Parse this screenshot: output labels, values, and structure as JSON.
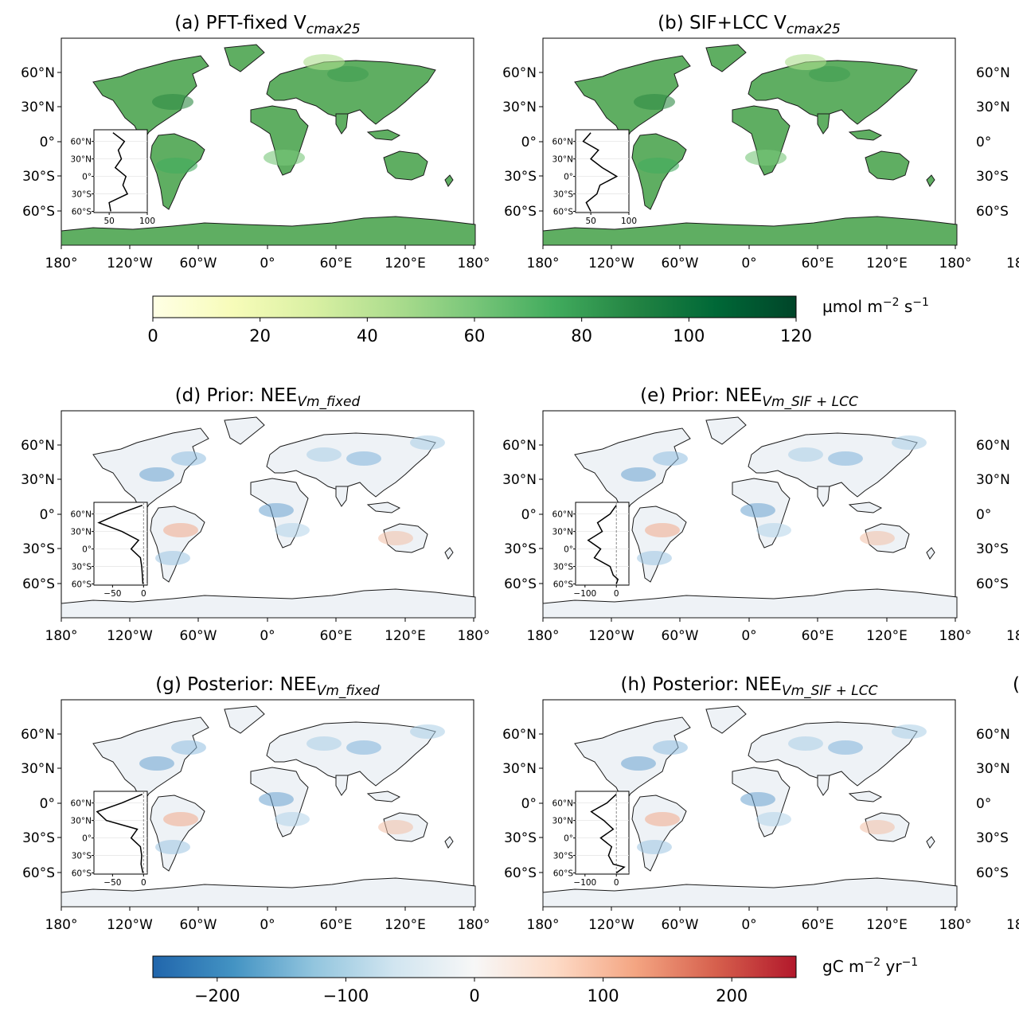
{
  "colors": {
    "vcmax_ramp": [
      "#ffffe5",
      "#f7fcb9",
      "#d9f0a3",
      "#addd8e",
      "#78c679",
      "#41ab5d",
      "#238443",
      "#006837",
      "#004529"
    ],
    "nee_ramp": [
      "#2166ac",
      "#4393c3",
      "#92c5de",
      "#d1e5f0",
      "#f7f7f7",
      "#fddbc7",
      "#f4a582",
      "#d6604d",
      "#b2182b"
    ],
    "land_vcmax": "#5fae62",
    "land_nee": "#eef2f6",
    "coastline": "#1a1a1a"
  },
  "map_axis_ticks": {
    "x": [
      "180°",
      "120°W",
      "60°W",
      "0°",
      "60°E",
      "120°E",
      "180°"
    ],
    "y": [
      "60°N",
      "30°N",
      "0°",
      "30°S",
      "60°S"
    ],
    "partial_right_x": "18",
    "partial_right_y": [
      "60°N",
      "30°N",
      "0°",
      "30°S",
      "60°S"
    ]
  },
  "inset_axis_ticks": {
    "y": [
      "60°N",
      "30°N",
      "0°",
      "30°S",
      "60°S"
    ]
  },
  "partial_title_c": "(",
  "chart_data": [
    {
      "type": "line",
      "panel": "a",
      "title": "(a) PFT-fixed V",
      "title_sub": "cmax25",
      "inset": {
        "x": [
          55,
          70,
          62,
          66,
          58,
          72,
          68,
          74,
          50,
          52
        ],
        "y": [
          75,
          60,
          45,
          30,
          15,
          0,
          -15,
          -30,
          -45,
          -60
        ],
        "xticks": [
          "50",
          "100"
        ],
        "xlim": [
          30,
          100
        ],
        "ylim": [
          -62,
          80
        ],
        "zero_line": false
      }
    },
    {
      "type": "line",
      "panel": "b",
      "title": "(b) SIF+LCC V",
      "title_sub": "cmax25",
      "inset": {
        "x": [
          50,
          40,
          60,
          50,
          65,
          84,
          62,
          58,
          44,
          50
        ],
        "y": [
          75,
          60,
          45,
          30,
          15,
          0,
          -15,
          -30,
          -45,
          -60
        ],
        "xticks": [
          "50",
          "100"
        ],
        "xlim": [
          30,
          100
        ],
        "ylim": [
          -62,
          80
        ],
        "zero_line": false
      }
    },
    {
      "type": "line",
      "panel": "d",
      "title": "(d) Prior: NEE",
      "title_sub": "Vm_fixed",
      "inset": {
        "x": [
          -2,
          -40,
          -72,
          -35,
          -8,
          -20,
          -5,
          -3,
          -2,
          -1
        ],
        "y": [
          75,
          60,
          45,
          30,
          15,
          0,
          -15,
          -30,
          -45,
          -60
        ],
        "xticks": [
          "−50",
          "0"
        ],
        "xlim": [
          -80,
          6
        ],
        "ylim": [
          -62,
          80
        ],
        "zero_line": true
      }
    },
    {
      "type": "line",
      "panel": "e",
      "title": "(e) Prior: NEE",
      "title_sub": "Vm_SIF + LCC",
      "inset": {
        "x": [
          0,
          -20,
          -60,
          -45,
          -90,
          -50,
          -70,
          -20,
          -10,
          5,
          0
        ],
        "y": [
          75,
          60,
          45,
          30,
          15,
          0,
          -15,
          -30,
          -45,
          -52,
          -60
        ],
        "xticks": [
          "−100",
          "0"
        ],
        "xlim": [
          -130,
          40
        ],
        "ylim": [
          -62,
          80
        ],
        "zero_line": true
      }
    },
    {
      "type": "line",
      "panel": "g",
      "title": "(g) Posterior: NEE",
      "title_sub": "Vm_fixed",
      "inset": {
        "x": [
          -2,
          -35,
          -75,
          -60,
          -10,
          -20,
          -5,
          -3,
          -4,
          -1
        ],
        "y": [
          75,
          60,
          45,
          30,
          15,
          0,
          -15,
          -30,
          -45,
          -60
        ],
        "xticks": [
          "−50",
          "0"
        ],
        "xlim": [
          -80,
          6
        ],
        "ylim": [
          -62,
          80
        ],
        "zero_line": true
      }
    },
    {
      "type": "line",
      "panel": "h",
      "title": "(h) Posterior: NEE",
      "title_sub": "Vm_SIF + LCC",
      "inset": {
        "x": [
          0,
          -30,
          -80,
          -40,
          -10,
          -50,
          -15,
          -25,
          -10,
          25,
          0
        ],
        "y": [
          75,
          60,
          45,
          30,
          15,
          0,
          -15,
          -30,
          -45,
          -50,
          -60
        ],
        "xticks": [
          "−100",
          "0"
        ],
        "xlim": [
          -130,
          40
        ],
        "ylim": [
          -62,
          80
        ],
        "zero_line": true
      }
    }
  ],
  "colorbars": [
    {
      "name": "vcmax",
      "ticks": [
        "0",
        "20",
        "40",
        "60",
        "80",
        "100",
        "120"
      ],
      "range": [
        0,
        120
      ],
      "unit_main": "µmol m",
      "unit_sup1": "−2",
      "unit_mid": " s",
      "unit_sup2": "−1"
    },
    {
      "name": "nee",
      "ticks": [
        "−200",
        "−100",
        "0",
        "100",
        "200"
      ],
      "range": [
        -250,
        250
      ],
      "unit_main": "gC m",
      "unit_sup1": "−2",
      "unit_mid": " yr",
      "unit_sup2": "−1"
    }
  ]
}
